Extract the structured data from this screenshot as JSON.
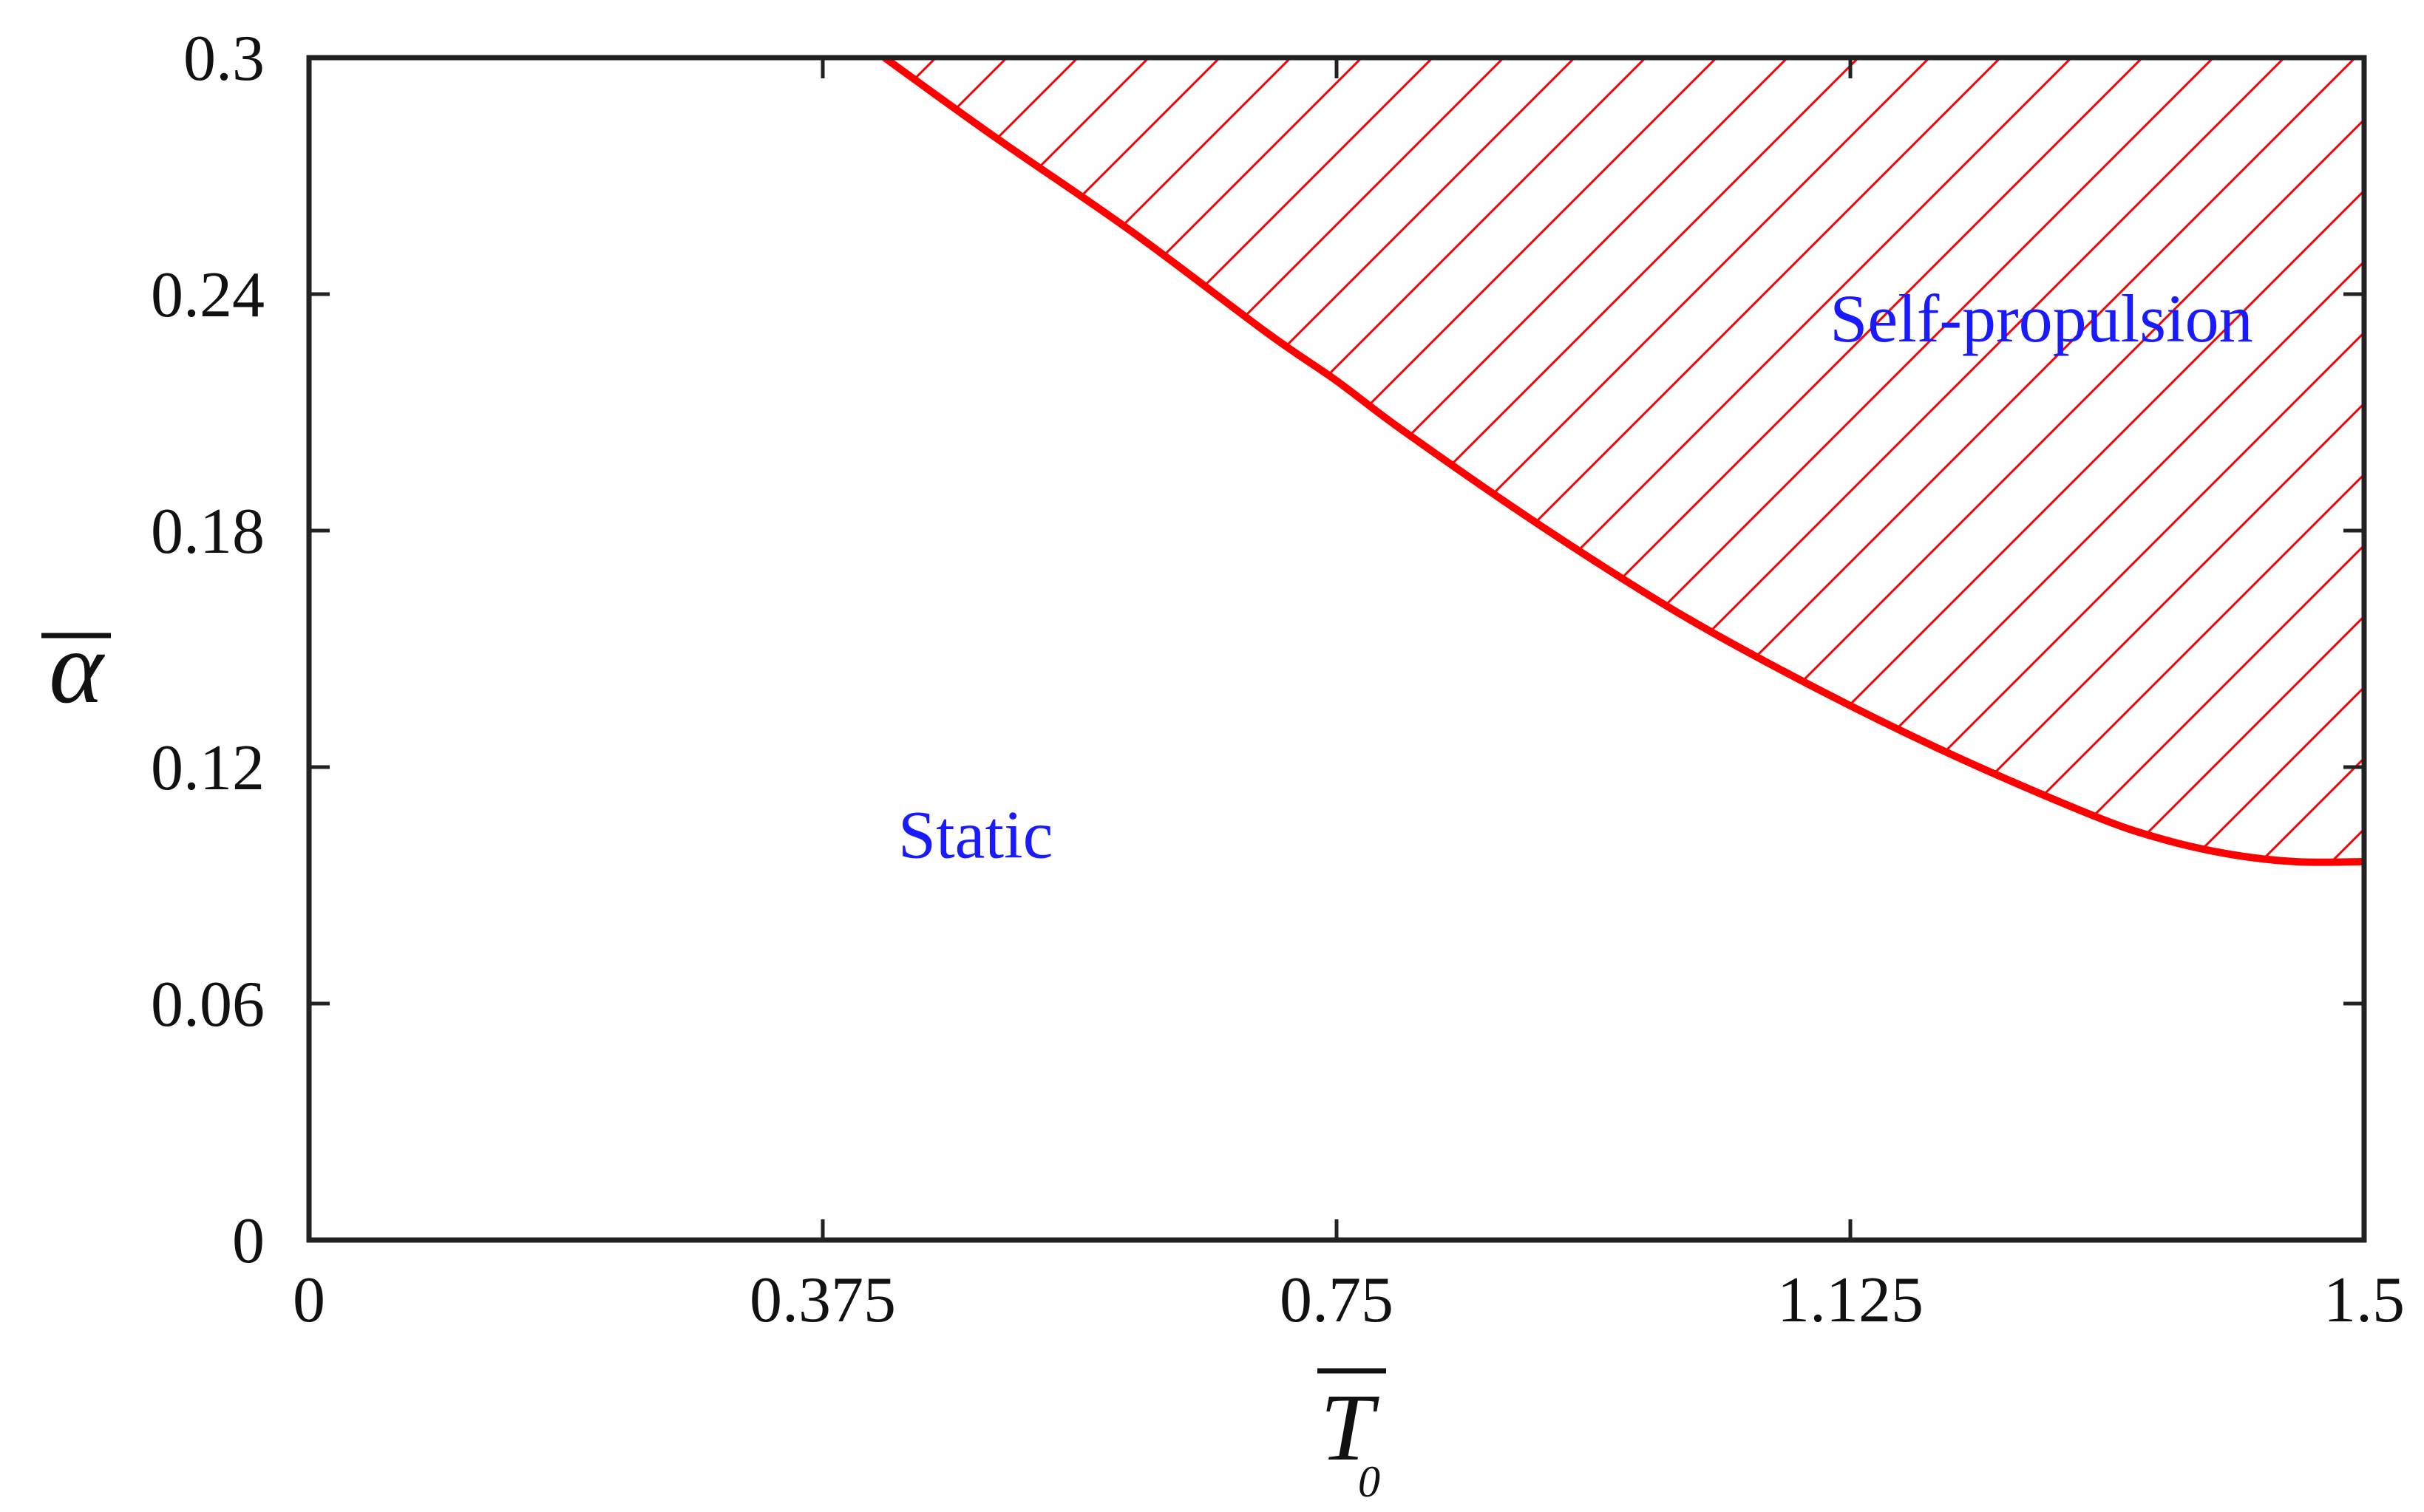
{
  "chart_data": {
    "type": "area",
    "xlim": [
      0,
      1.5
    ],
    "ylim": [
      0,
      0.3
    ],
    "x_ticks": [
      0,
      0.375,
      0.75,
      1.125,
      1.5
    ],
    "y_ticks": [
      0,
      0.06,
      0.12,
      0.18,
      0.24,
      0.3
    ],
    "x_tick_labels": [
      "0",
      "0.375",
      "0.75",
      "1.125",
      "1.5"
    ],
    "y_tick_labels": [
      "0",
      "0.06",
      "0.12",
      "0.18",
      "0.24",
      "0.3"
    ],
    "xlabel": "T",
    "xlabel_subscript": "0",
    "ylabel": "α",
    "grid": false,
    "boundary": {
      "color": "#ff0000",
      "x": [
        0.42,
        0.5,
        0.6,
        0.7,
        0.75,
        0.8,
        0.9,
        1.0,
        1.1,
        1.2,
        1.3,
        1.35,
        1.4,
        1.45,
        1.5
      ],
      "y": [
        0.3,
        0.28,
        0.256,
        0.23,
        0.218,
        0.205,
        0.181,
        0.159,
        0.14,
        0.123,
        0.108,
        0.102,
        0.098,
        0.096,
        0.096
      ]
    },
    "regions": [
      {
        "label": "Self-propulsion",
        "x": 1.11,
        "y": 0.228,
        "hatch_color": "#ff0000"
      },
      {
        "label": "Static",
        "x": 0.43,
        "y": 0.097
      }
    ]
  }
}
